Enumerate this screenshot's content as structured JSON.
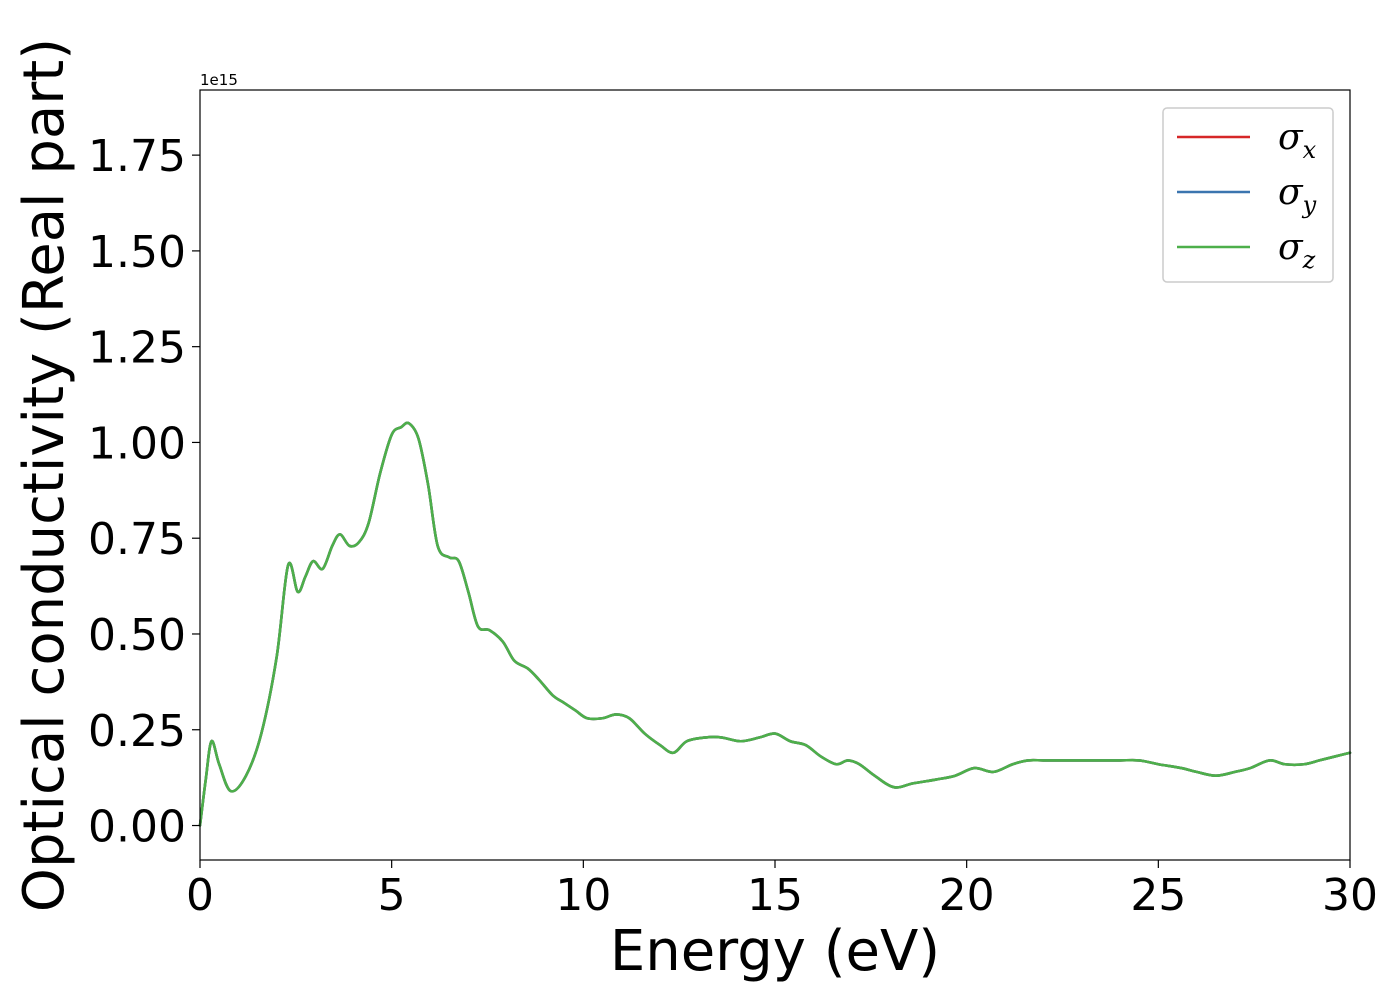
{
  "chart_data": {
    "type": "line",
    "title": "",
    "xlabel": "Energy (eV)",
    "ylabel": "Optical conductivity (Real part)",
    "y_offset_label": "1e15",
    "xlim": [
      0,
      30
    ],
    "ylim": [
      -0.09,
      1.92
    ],
    "xticks": [
      0,
      5,
      10,
      15,
      20,
      25,
      30
    ],
    "xtick_labels": [
      "0",
      "5",
      "10",
      "15",
      "20",
      "25",
      "30"
    ],
    "yticks": [
      0.0,
      0.25,
      0.5,
      0.75,
      1.0,
      1.25,
      1.5,
      1.75
    ],
    "ytick_labels": [
      "0.00",
      "0.25",
      "0.50",
      "0.75",
      "1.00",
      "1.25",
      "1.50",
      "1.75"
    ],
    "grid": false,
    "legend_position": "top-right",
    "x": [
      0,
      0.15,
      0.3,
      0.5,
      0.8,
      1.2,
      1.6,
      2.0,
      2.3,
      2.55,
      2.75,
      2.95,
      3.2,
      3.45,
      3.65,
      3.9,
      4.15,
      4.4,
      4.7,
      5.0,
      5.25,
      5.45,
      5.7,
      5.95,
      6.2,
      6.5,
      6.75,
      7.0,
      7.25,
      7.55,
      7.9,
      8.2,
      8.55,
      8.85,
      9.2,
      9.5,
      9.8,
      10.1,
      10.5,
      10.85,
      11.2,
      11.6,
      12.0,
      12.35,
      12.7,
      13.2,
      13.6,
      14.1,
      14.6,
      15.0,
      15.4,
      15.8,
      16.2,
      16.6,
      16.9,
      17.2,
      17.6,
      18.1,
      18.6,
      19.2,
      19.7,
      20.2,
      20.7,
      21.2,
      21.6,
      22.0,
      22.5,
      23.0,
      23.5,
      24.0,
      24.5,
      25.0,
      25.6,
      26.0,
      26.5,
      27.0,
      27.4,
      27.9,
      28.3,
      28.8,
      29.2,
      29.6,
      30.0
    ],
    "series": [
      {
        "name": "σx",
        "symbol": "σ",
        "subscript": "x",
        "color": "#d62728",
        "values": [
          0.0,
          0.12,
          0.22,
          0.16,
          0.09,
          0.13,
          0.24,
          0.44,
          0.68,
          0.61,
          0.65,
          0.69,
          0.67,
          0.73,
          0.76,
          0.73,
          0.74,
          0.79,
          0.92,
          1.02,
          1.04,
          1.05,
          1.01,
          0.89,
          0.73,
          0.7,
          0.69,
          0.61,
          0.52,
          0.51,
          0.48,
          0.43,
          0.41,
          0.38,
          0.34,
          0.32,
          0.3,
          0.28,
          0.28,
          0.29,
          0.28,
          0.24,
          0.21,
          0.19,
          0.22,
          0.23,
          0.23,
          0.22,
          0.23,
          0.24,
          0.22,
          0.21,
          0.18,
          0.16,
          0.17,
          0.16,
          0.13,
          0.1,
          0.11,
          0.12,
          0.13,
          0.15,
          0.14,
          0.16,
          0.17,
          0.17,
          0.17,
          0.17,
          0.17,
          0.17,
          0.17,
          0.16,
          0.15,
          0.14,
          0.13,
          0.14,
          0.15,
          0.17,
          0.16,
          0.16,
          0.17,
          0.18,
          0.19
        ]
      },
      {
        "name": "σy",
        "symbol": "σ",
        "subscript": "y",
        "color": "#3b75af",
        "values": [
          0.0,
          0.12,
          0.22,
          0.16,
          0.09,
          0.13,
          0.24,
          0.44,
          0.68,
          0.61,
          0.65,
          0.69,
          0.67,
          0.73,
          0.76,
          0.73,
          0.74,
          0.79,
          0.92,
          1.02,
          1.04,
          1.05,
          1.01,
          0.89,
          0.73,
          0.7,
          0.69,
          0.61,
          0.52,
          0.51,
          0.48,
          0.43,
          0.41,
          0.38,
          0.34,
          0.32,
          0.3,
          0.28,
          0.28,
          0.29,
          0.28,
          0.24,
          0.21,
          0.19,
          0.22,
          0.23,
          0.23,
          0.22,
          0.23,
          0.24,
          0.22,
          0.21,
          0.18,
          0.16,
          0.17,
          0.16,
          0.13,
          0.1,
          0.11,
          0.12,
          0.13,
          0.15,
          0.14,
          0.16,
          0.17,
          0.17,
          0.17,
          0.17,
          0.17,
          0.17,
          0.17,
          0.16,
          0.15,
          0.14,
          0.13,
          0.14,
          0.15,
          0.17,
          0.16,
          0.16,
          0.17,
          0.18,
          0.19
        ]
      },
      {
        "name": "σz",
        "symbol": "σ",
        "subscript": "z",
        "color": "#4daf4a",
        "values": [
          0.0,
          0.12,
          0.22,
          0.16,
          0.09,
          0.13,
          0.24,
          0.44,
          0.68,
          0.61,
          0.65,
          0.69,
          0.67,
          0.73,
          0.76,
          0.73,
          0.74,
          0.79,
          0.92,
          1.02,
          1.04,
          1.05,
          1.01,
          0.89,
          0.73,
          0.7,
          0.69,
          0.61,
          0.52,
          0.51,
          0.48,
          0.43,
          0.41,
          0.38,
          0.34,
          0.32,
          0.3,
          0.28,
          0.28,
          0.29,
          0.28,
          0.24,
          0.21,
          0.19,
          0.22,
          0.23,
          0.23,
          0.22,
          0.23,
          0.24,
          0.22,
          0.21,
          0.18,
          0.16,
          0.17,
          0.16,
          0.13,
          0.1,
          0.11,
          0.12,
          0.13,
          0.15,
          0.14,
          0.16,
          0.17,
          0.17,
          0.17,
          0.17,
          0.17,
          0.17,
          0.17,
          0.16,
          0.15,
          0.14,
          0.13,
          0.14,
          0.15,
          0.17,
          0.16,
          0.16,
          0.17,
          0.18,
          0.19
        ]
      }
    ]
  }
}
